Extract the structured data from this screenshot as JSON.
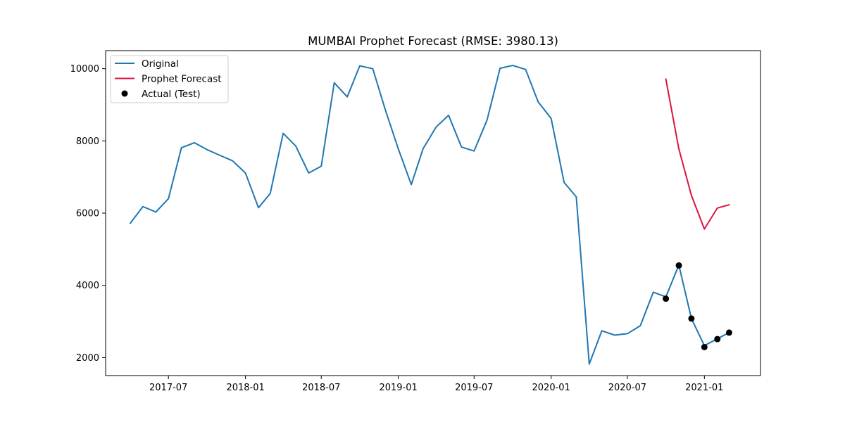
{
  "chart_data": {
    "type": "line",
    "title": "MUMBAI Prophet Forecast (RMSE: 3980.13)",
    "xlabel": "",
    "ylabel": "",
    "x_axis_type": "date",
    "xlim": [
      "2017-02-01",
      "2021-05-15"
    ],
    "ylim": [
      1500,
      10500
    ],
    "yticks": [
      2000,
      4000,
      6000,
      8000,
      10000
    ],
    "xticks": [
      {
        "date": "2017-07-01",
        "label": "2017-07"
      },
      {
        "date": "2018-01-01",
        "label": "2018-01"
      },
      {
        "date": "2018-07-01",
        "label": "2018-07"
      },
      {
        "date": "2019-01-01",
        "label": "2019-01"
      },
      {
        "date": "2019-07-01",
        "label": "2019-07"
      },
      {
        "date": "2020-01-01",
        "label": "2020-01"
      },
      {
        "date": "2020-07-01",
        "label": "2020-07"
      },
      {
        "date": "2021-01-01",
        "label": "2021-01"
      }
    ],
    "grid": false,
    "legend_position": "top-left",
    "series": [
      {
        "name": "Original",
        "type": "line",
        "color": "#1f77b4",
        "x": [
          "2017-04-01",
          "2017-05-01",
          "2017-06-01",
          "2017-07-01",
          "2017-08-01",
          "2017-09-01",
          "2017-10-01",
          "2017-11-01",
          "2017-12-01",
          "2018-01-01",
          "2018-02-01",
          "2018-03-01",
          "2018-04-01",
          "2018-05-01",
          "2018-06-01",
          "2018-07-01",
          "2018-08-01",
          "2018-09-01",
          "2018-10-01",
          "2018-11-01",
          "2018-12-01",
          "2019-01-01",
          "2019-02-01",
          "2019-03-01",
          "2019-04-01",
          "2019-05-01",
          "2019-06-01",
          "2019-07-01",
          "2019-08-01",
          "2019-09-01",
          "2019-10-01",
          "2019-11-01",
          "2019-12-01",
          "2020-01-01",
          "2020-02-01",
          "2020-03-01",
          "2020-04-01",
          "2020-05-01",
          "2020-06-01",
          "2020-07-01",
          "2020-08-01",
          "2020-09-01",
          "2020-10-01",
          "2020-11-01",
          "2020-12-01",
          "2021-01-01",
          "2021-02-01",
          "2021-03-01"
        ],
        "y": [
          5720,
          6180,
          6030,
          6400,
          7810,
          7950,
          7760,
          7600,
          7450,
          7110,
          6150,
          6540,
          8210,
          7860,
          7110,
          7300,
          9610,
          9220,
          10080,
          10000,
          8860,
          7780,
          6790,
          7780,
          8380,
          8710,
          7830,
          7720,
          8580,
          10010,
          10090,
          9980,
          9080,
          8620,
          6850,
          6450,
          1820,
          2740,
          2620,
          2660,
          2880,
          3810,
          3680,
          4560,
          3080,
          2330,
          2520,
          2690
        ]
      },
      {
        "name": "Prophet Forecast",
        "type": "line",
        "color": "#dc143c",
        "x": [
          "2020-10-01",
          "2020-11-01",
          "2020-12-01",
          "2021-01-01",
          "2021-02-01",
          "2021-03-01"
        ],
        "y": [
          9710,
          7780,
          6490,
          5560,
          6140,
          6230
        ]
      },
      {
        "name": "Actual (Test)",
        "type": "scatter",
        "color": "#000000",
        "x": [
          "2020-10-01",
          "2020-11-01",
          "2020-12-01",
          "2021-01-01",
          "2021-02-01",
          "2021-03-01"
        ],
        "y": [
          3630,
          4550,
          3080,
          2290,
          2510,
          2690
        ]
      }
    ]
  }
}
